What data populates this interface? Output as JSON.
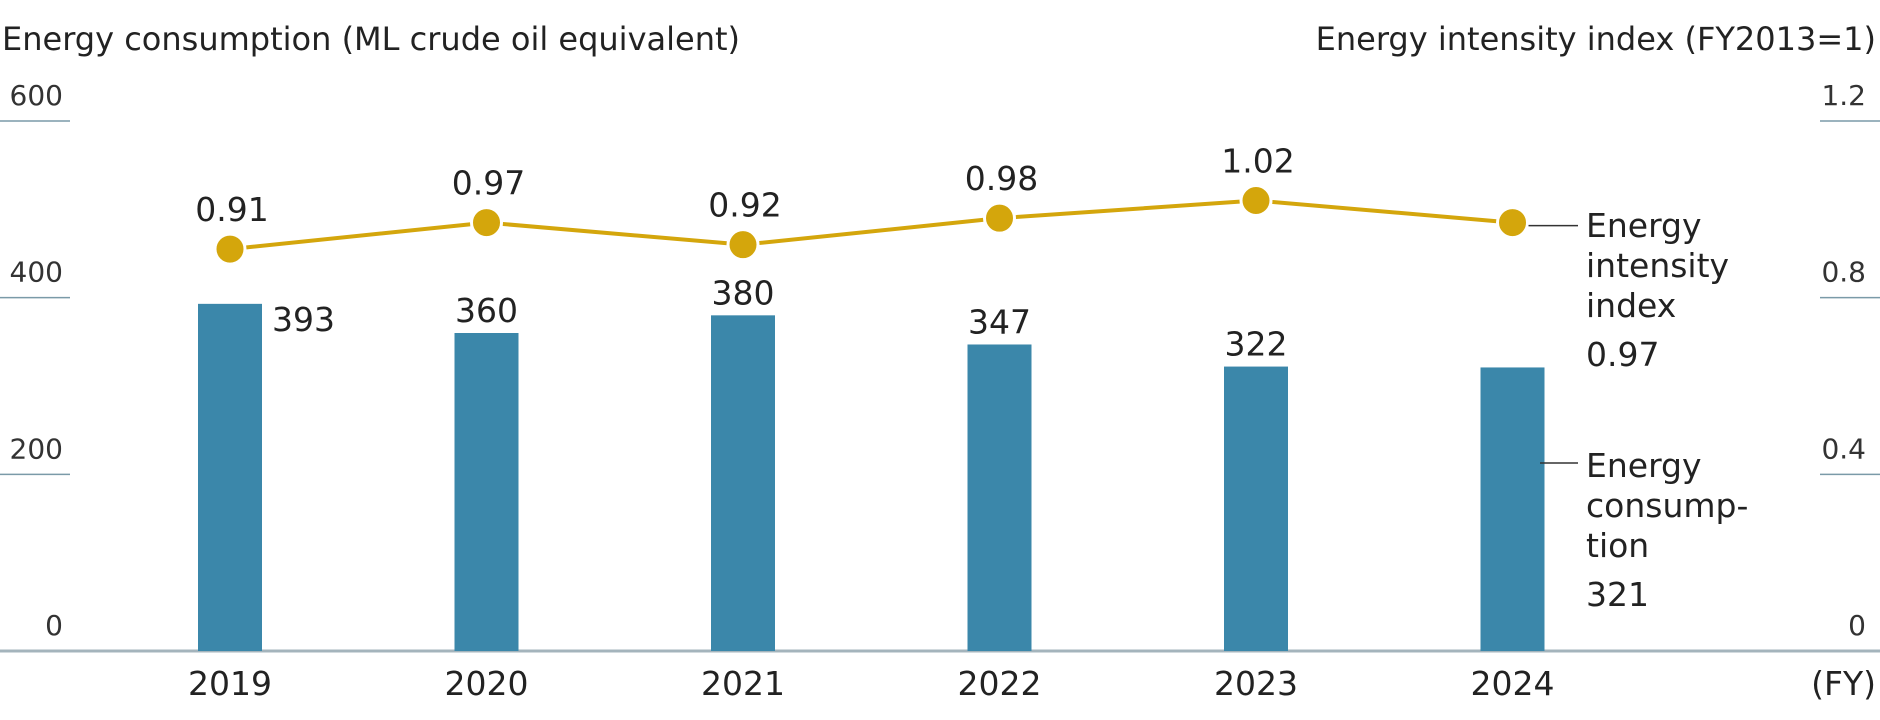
{
  "chart_data": {
    "type": "bar",
    "left_axis_title": "Energy consumption (ML crude oil equivalent)",
    "right_axis_title": "Energy intensity index (FY2013=1)",
    "x_unit": "(FY)",
    "categories": [
      "2019",
      "2020",
      "2021",
      "2022",
      "2023",
      "2024"
    ],
    "left_ylim": [
      0,
      600
    ],
    "left_ticks": [
      "0",
      "200",
      "400",
      "600"
    ],
    "right_ylim": [
      0,
      1.2
    ],
    "right_ticks": [
      "0",
      "0.4",
      "0.8",
      "1.2"
    ],
    "series": [
      {
        "name": "Energy consumption",
        "type": "bar",
        "axis": "left",
        "values": [
          393,
          360,
          380,
          347,
          322,
          321
        ],
        "labels": [
          "393",
          "360",
          "380",
          "347",
          "322",
          "321"
        ],
        "color": "#3b87aa"
      },
      {
        "name": "Energy intensity index",
        "type": "line",
        "axis": "right",
        "values": [
          0.91,
          0.97,
          0.92,
          0.98,
          1.02,
          0.97
        ],
        "labels": [
          "0.91",
          "0.97",
          "0.92",
          "0.98",
          "1.02",
          "0.97"
        ],
        "color": "#d4a60c"
      }
    ],
    "legend": {
      "line_name_lines": [
        "Energy",
        "intensity",
        "index"
      ],
      "bar_name_lines": [
        "Energy",
        "consump-",
        "tion"
      ]
    },
    "grid": false
  }
}
